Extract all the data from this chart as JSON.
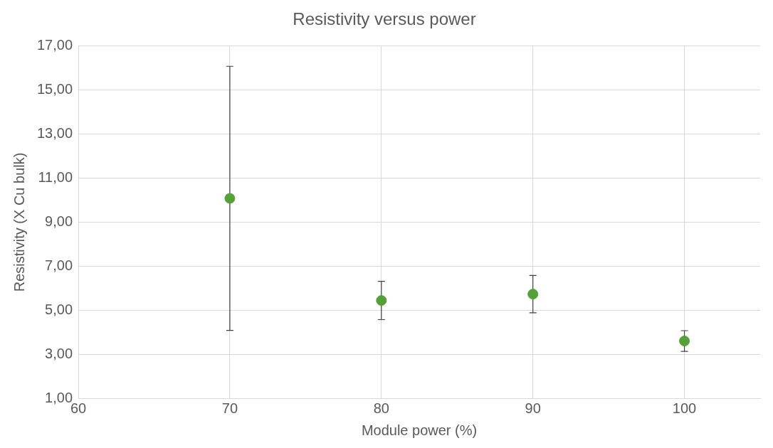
{
  "chart_data": {
    "type": "scatter",
    "title": "Resistivity versus power",
    "xlabel": "Module power (%)",
    "ylabel": "Resistivity (X Cu bulk)",
    "x": [
      70,
      80,
      90,
      100
    ],
    "values": [
      10.08,
      5.44,
      5.73,
      3.6
    ],
    "errors": [
      6.0,
      0.87,
      0.85,
      0.47
    ],
    "color": "#56a03a",
    "marker": "circle",
    "grid": true,
    "xlim": [
      60,
      105
    ],
    "xticks": [
      60,
      70,
      80,
      90,
      100
    ],
    "ylim": [
      1,
      17
    ],
    "yticks": [
      {
        "value": 1,
        "label": "1,00"
      },
      {
        "value": 3,
        "label": "3,00"
      },
      {
        "value": 5,
        "label": "5,00"
      },
      {
        "value": 7,
        "label": "7,00"
      },
      {
        "value": 9,
        "label": "9,00"
      },
      {
        "value": 11,
        "label": "11,00"
      },
      {
        "value": 13,
        "label": "13,00"
      },
      {
        "value": 15,
        "label": "15,00"
      },
      {
        "value": 17,
        "label": "17,00"
      }
    ]
  }
}
